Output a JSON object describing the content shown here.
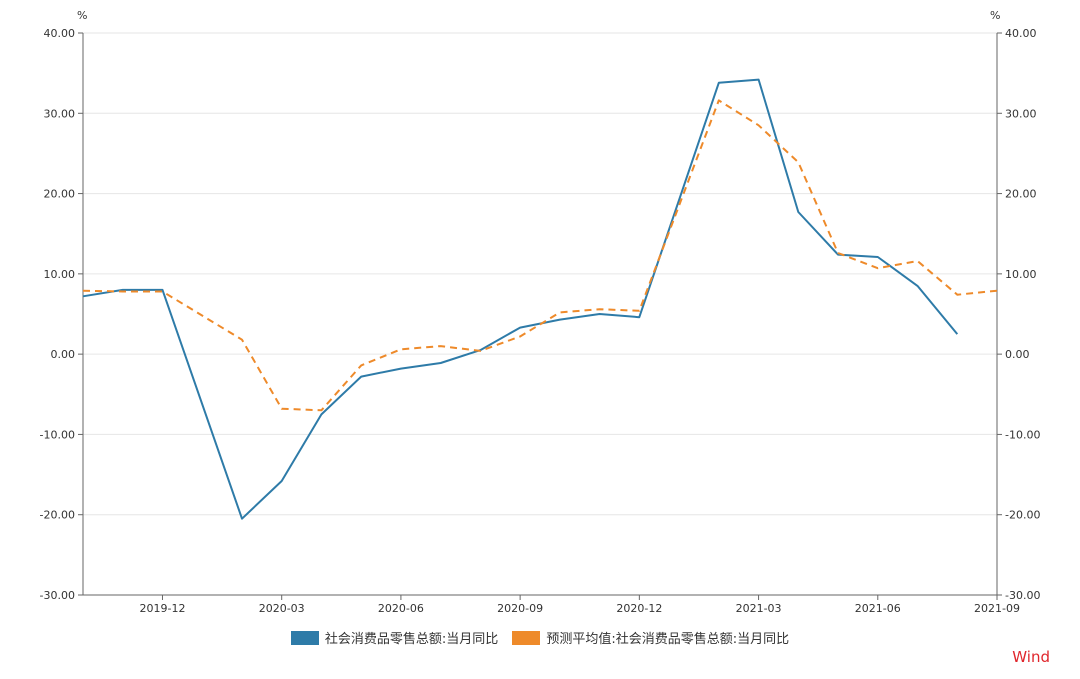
{
  "chart_data": {
    "type": "line",
    "y_unit_left": "%",
    "y_unit_right": "%",
    "ylim": [
      -30,
      40
    ],
    "y_ticks": [
      "40.00",
      "30.00",
      "20.00",
      "10.00",
      "0.00",
      "-10.00",
      "-20.00",
      "-30.00"
    ],
    "x_ticks": [
      "2019-12",
      "2020-03",
      "2020-06",
      "2020-09",
      "2020-12",
      "2021-03",
      "2021-06",
      "2021-09"
    ],
    "x": [
      "2019-10",
      "2019-11",
      "2019-12",
      "2020-01",
      "2020-02",
      "2020-03",
      "2020-04",
      "2020-05",
      "2020-06",
      "2020-07",
      "2020-08",
      "2020-09",
      "2020-10",
      "2020-11",
      "2020-12",
      "2021-01",
      "2021-02",
      "2021-03",
      "2021-04",
      "2021-05",
      "2021-06",
      "2021-07",
      "2021-08",
      "2021-09"
    ],
    "series": [
      {
        "name": "社会消费品零售总额:当月同比",
        "color": "#2e7ba8",
        "style": "solid",
        "values": [
          7.2,
          8.0,
          8.0,
          null,
          -20.5,
          -15.8,
          -7.5,
          -2.8,
          -1.8,
          -1.1,
          0.5,
          3.3,
          4.3,
          5.0,
          4.6,
          null,
          33.8,
          34.2,
          17.7,
          12.4,
          12.1,
          8.5,
          2.5,
          null
        ]
      },
      {
        "name": "预测平均值:社会消费品零售总额:当月同比",
        "color": "#ee8a2a",
        "style": "dashed",
        "values": [
          7.9,
          7.8,
          7.8,
          null,
          1.8,
          -6.8,
          -7.0,
          -1.4,
          0.6,
          1.0,
          0.4,
          2.2,
          5.2,
          5.6,
          5.4,
          null,
          31.6,
          28.5,
          23.9,
          12.6,
          10.7,
          11.6,
          7.4,
          7.9
        ]
      }
    ]
  },
  "brand": "Wind",
  "colors": {
    "grid": "#e6e6e6",
    "axis": "#666666",
    "text": "#333333",
    "brand": "#e0262c"
  }
}
